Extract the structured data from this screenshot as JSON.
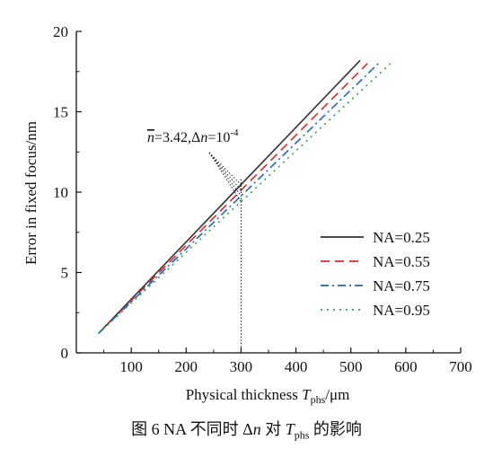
{
  "chart_data": {
    "type": "line",
    "xlabel_main": "Physical thickness ",
    "xlabel_var": "T",
    "xlabel_sub": "phs",
    "xlabel_unit": "/μm",
    "ylabel": "Error in fixed focus/nm",
    "xlim": [
      0,
      700
    ],
    "ylim": [
      0,
      20
    ],
    "xticks": [
      100,
      200,
      300,
      400,
      500,
      600,
      700
    ],
    "yticks": [
      0,
      5,
      10,
      15,
      20
    ],
    "legend_position": "right-middle",
    "series": [
      {
        "name": "NA=0.25",
        "color": "#333333",
        "dash": "solid",
        "points": [
          [
            40,
            1.2
          ],
          [
            517,
            18.2
          ]
        ]
      },
      {
        "name": "NA=0.55",
        "color": "#ee2222",
        "dash": "dash",
        "points": [
          [
            40,
            1.2
          ],
          [
            530,
            18.0
          ]
        ]
      },
      {
        "name": "NA=0.75",
        "color": "#1a66cc",
        "dash": "dashdot",
        "points": [
          [
            40,
            1.2
          ],
          [
            550,
            18.0
          ]
        ]
      },
      {
        "name": "NA=0.95",
        "color": "#22aa44",
        "dash": "dot",
        "points": [
          [
            40,
            1.2
          ],
          [
            572,
            18.0
          ]
        ]
      }
    ],
    "annotation": {
      "nbar": "n",
      "text_part1": "=3.42,Δ",
      "n2": "n",
      "text_part2": "=10",
      "exponent": "-4",
      "target_x": 300
    }
  },
  "caption": {
    "text_part1": "图 6   NA 不同时 Δ",
    "n": "n",
    "text_part2": " 对 ",
    "T": "T",
    "sub": "phs",
    "text_part3": " 的影响"
  }
}
